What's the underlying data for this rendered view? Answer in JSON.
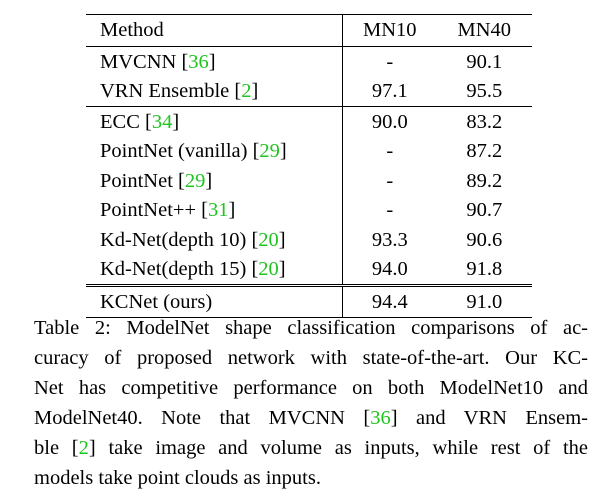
{
  "table": {
    "headers": {
      "method": "Method",
      "mn10": "MN10",
      "mn40": "MN40"
    },
    "rows": [
      {
        "method": "MVCNN",
        "cite": "36",
        "mn10": "-",
        "mn40": "90.1",
        "bold10": false,
        "bold40": false
      },
      {
        "method": "VRN Ensemble",
        "cite": "2",
        "mn10": "97.1",
        "mn40": "95.5",
        "bold10": true,
        "bold40": true
      },
      {
        "method": "ECC",
        "cite": "34",
        "mn10": "90.0",
        "mn40": "83.2",
        "bold10": false,
        "bold40": false
      },
      {
        "method": "PointNet (vanilla)",
        "cite": "29",
        "mn10": "-",
        "mn40": "87.2",
        "bold10": false,
        "bold40": false
      },
      {
        "method": "PointNet",
        "cite": "29",
        "mn10": "-",
        "mn40": "89.2",
        "bold10": false,
        "bold40": false
      },
      {
        "method": "PointNet++",
        "cite": "31",
        "mn10": "-",
        "mn40": "90.7",
        "bold10": false,
        "bold40": false
      },
      {
        "method": "Kd-Net(depth 10)",
        "cite": "20",
        "mn10": "93.3",
        "mn40": "90.6",
        "bold10": false,
        "bold40": false
      },
      {
        "method": "Kd-Net(depth 15)",
        "cite": "20",
        "mn10": "94.0",
        "mn40": "91.8",
        "bold10": false,
        "bold40": false
      },
      {
        "method": "KCNet (ours)",
        "cite": "",
        "mn10": "94.4",
        "mn40": "91.0",
        "bold10": false,
        "bold40": false
      }
    ]
  },
  "caption": {
    "l1": "Table 2: ModelNet shape classification comparisons of ac-",
    "l2": "curacy of proposed network with state-of-the-art. Our KC-",
    "l3": "Net has competitive performance on both ModelNet10 and",
    "l4a": "ModelNet40. Note that MVCNN [",
    "l4cite": "36",
    "l4b": "] and VRN Ensem-",
    "l5a": "ble [",
    "l5cite": "2",
    "l5b": "] take image and volume as inputs, while rest of the",
    "l6": "models take point clouds as inputs."
  },
  "colors": {
    "citation": "#1fc51f",
    "text": "#000000"
  }
}
